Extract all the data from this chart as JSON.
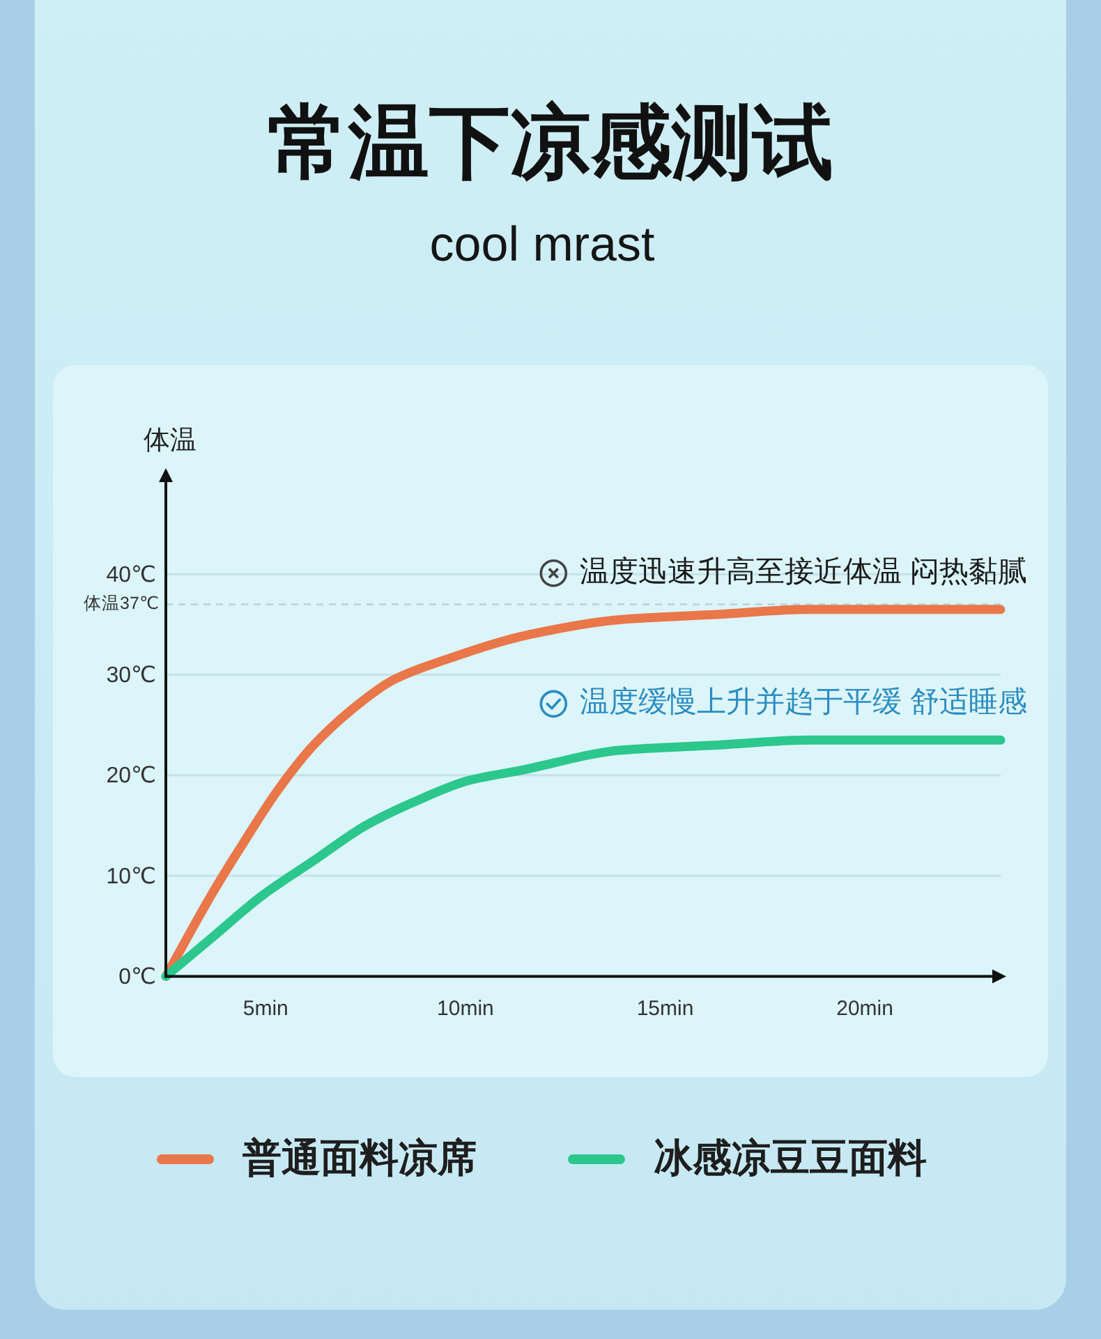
{
  "chart_data": {
    "type": "line",
    "title": "常温下凉感测试",
    "subtitle": "cool mrast",
    "ylabel": "体温",
    "xlim": [
      2.5,
      23.4
    ],
    "ylim": [
      0,
      50
    ],
    "xticks": [
      {
        "value": 5,
        "label": "5min"
      },
      {
        "value": 10,
        "label": "10min"
      },
      {
        "value": 15,
        "label": "15min"
      },
      {
        "value": 20,
        "label": "20min"
      }
    ],
    "yticks": [
      {
        "value": 0,
        "label": "0℃"
      },
      {
        "value": 10,
        "label": "10℃"
      },
      {
        "value": 20,
        "label": "20℃"
      },
      {
        "value": 30,
        "label": "30℃"
      },
      {
        "value": 40,
        "label": "40℃"
      }
    ],
    "grid": "y",
    "legend": "bottom",
    "ref_lines": [
      {
        "axis": "y",
        "value": 37,
        "label": "体温37℃",
        "color": "#b7d2d8",
        "line_style": "dashed"
      }
    ],
    "series": [
      {
        "name": "普通面料凉席",
        "color": "#e9774a",
        "x": [
          2.5,
          3.7,
          4.4,
          5.3,
          6.2,
          7.3,
          8.2,
          9.5,
          11.6,
          13.9,
          16.3,
          18.6,
          20.9,
          23.4
        ],
        "values": [
          0,
          8.5,
          13,
          18.5,
          23,
          27,
          29.5,
          31.5,
          34,
          35.5,
          36,
          36.5,
          36.5,
          36.5
        ]
      },
      {
        "name": "冰感凉豆豆面料",
        "color": "#2cc78c",
        "x": [
          2.5,
          3.7,
          4.9,
          6.2,
          7.5,
          8.8,
          10.1,
          11.4,
          13.9,
          16.3,
          18.6,
          20.9,
          23.4
        ],
        "values": [
          0,
          4,
          8,
          11.5,
          15,
          17.5,
          19.5,
          20.5,
          22.5,
          23,
          23.5,
          23.5,
          23.5
        ]
      }
    ],
    "annotations": [
      "温度迅速升高至接近体温 闷热黏腻",
      "温度缓慢上升并趋于平缓 舒适睡感"
    ]
  }
}
